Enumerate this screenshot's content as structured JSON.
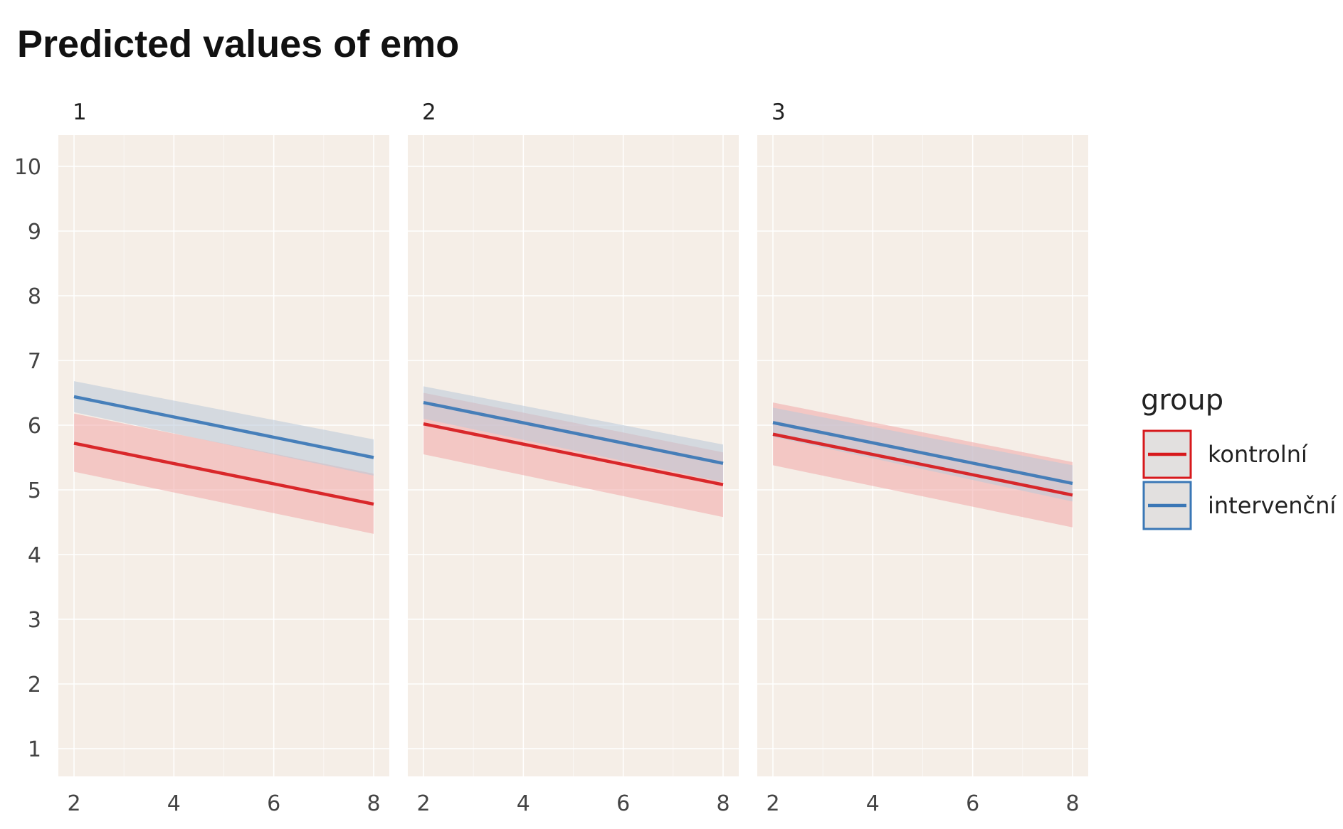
{
  "chart_data": {
    "type": "line",
    "title": "Predicted values of emo",
    "facets": [
      "1",
      "2",
      "3"
    ],
    "x_ticks": [
      2,
      4,
      6,
      8
    ],
    "y_ticks": [
      1,
      2,
      3,
      4,
      5,
      6,
      7,
      8,
      9,
      10
    ],
    "xlim": [
      2,
      8
    ],
    "ylim": [
      1,
      10
    ],
    "grid": true,
    "legend": {
      "title": "group",
      "placement": "right"
    },
    "series": [
      {
        "name": "kontrolní",
        "color": "#d7191c",
        "ribbon_color": "#f0a8a8",
        "panels": [
          {
            "facet": "1",
            "x": [
              2,
              8
            ],
            "y": [
              5.72,
              4.78
            ],
            "lower": [
              5.28,
              4.32
            ],
            "upper": [
              6.18,
              5.25
            ]
          },
          {
            "facet": "2",
            "x": [
              2,
              8
            ],
            "y": [
              6.02,
              5.08
            ],
            "lower": [
              5.55,
              4.58
            ],
            "upper": [
              6.5,
              5.58
            ]
          },
          {
            "facet": "3",
            "x": [
              2,
              8
            ],
            "y": [
              5.86,
              4.92
            ],
            "lower": [
              5.38,
              4.42
            ],
            "upper": [
              6.35,
              5.43
            ]
          }
        ]
      },
      {
        "name": "intervenční",
        "color": "#3a77b6",
        "ribbon_color": "#b8c8d8",
        "panels": [
          {
            "facet": "1",
            "x": [
              2,
              8
            ],
            "y": [
              6.44,
              5.5
            ],
            "lower": [
              6.2,
              5.22
            ],
            "upper": [
              6.68,
              5.78
            ]
          },
          {
            "facet": "2",
            "x": [
              2,
              8
            ],
            "y": [
              6.35,
              5.41
            ],
            "lower": [
              6.1,
              5.12
            ],
            "upper": [
              6.6,
              5.7
            ]
          },
          {
            "facet": "3",
            "x": [
              2,
              8
            ],
            "y": [
              6.04,
              5.1
            ],
            "lower": [
              5.82,
              4.82
            ],
            "upper": [
              6.27,
              5.38
            ]
          }
        ]
      }
    ]
  },
  "colors": {
    "panel_bg": "#f5eee7",
    "grid": "#ffffff"
  }
}
